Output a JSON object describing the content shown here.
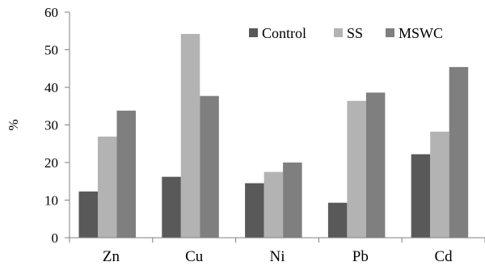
{
  "chart_data": {
    "type": "bar",
    "ylabel": "%",
    "xlabel": "",
    "ylim": [
      0,
      60
    ],
    "yticks": [
      0,
      10,
      20,
      30,
      40,
      50,
      60
    ],
    "categories": [
      "Zn",
      "Cu",
      "Ni",
      "Pb",
      "Cd"
    ],
    "series": [
      {
        "name": "Control",
        "color": "#595959",
        "values": [
          12.3,
          16.2,
          14.5,
          9.3,
          22.2
        ]
      },
      {
        "name": "SS",
        "color": "#b3b3b3",
        "values": [
          26.9,
          54.2,
          17.5,
          36.4,
          28.2
        ]
      },
      {
        "name": "MSWC",
        "color": "#7f7f7f",
        "values": [
          33.8,
          37.7,
          20.0,
          38.6,
          45.4
        ]
      }
    ],
    "grid": false,
    "legend_position": "top-right"
  }
}
